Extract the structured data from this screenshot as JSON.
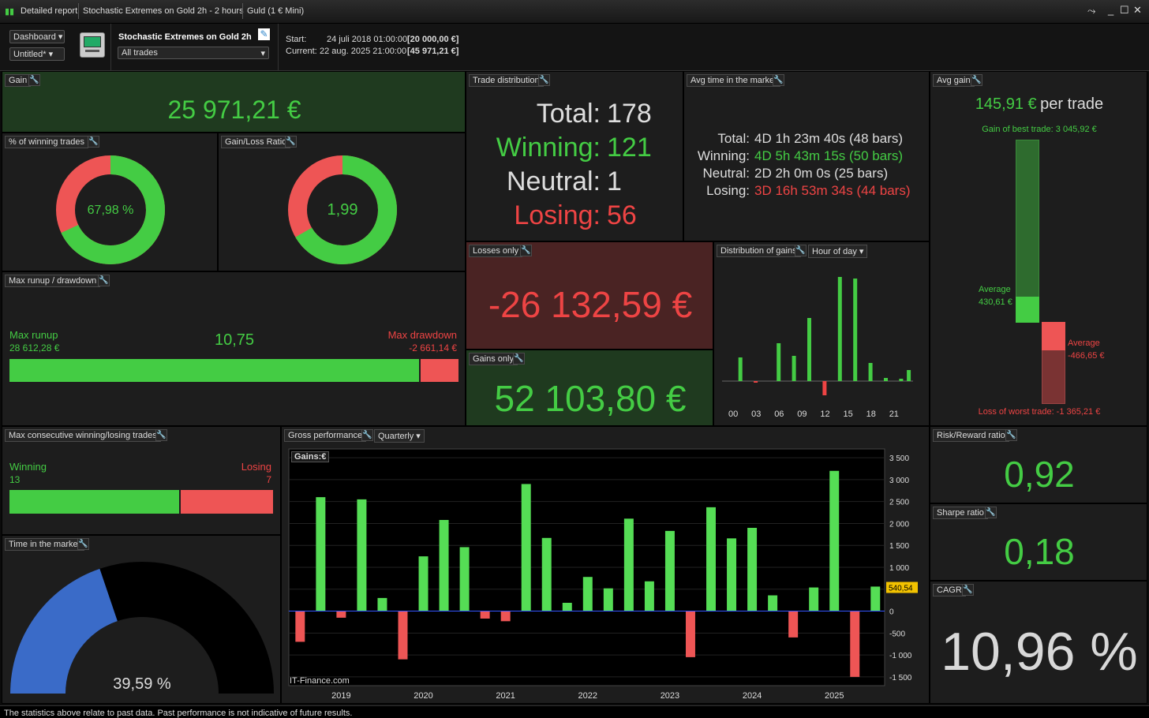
{
  "window": {
    "tab1": "Detailed report",
    "tab2": "Stochastic Extremes on Gold 2h - 2 hours",
    "tab3": "Guld (1 € Mini)"
  },
  "toolbar": {
    "dashboard": "Dashboard",
    "untitled": "Untitled*",
    "strategy_name": "Stochastic Extremes on Gold 2h",
    "trades_filter": "All trades",
    "start_label": "Start:",
    "start_date": "24 juli 2018 01:00:00",
    "start_value": "[20 000,00 €]",
    "current_label": "Current:",
    "current_date": "22 aug. 2025 21:00:00",
    "current_value": "[45 971,21 €]"
  },
  "gain": {
    "title": "Gain",
    "value": "25 971,21 €"
  },
  "winning_pct": {
    "title": "% of winning trades",
    "value": "67,98 %",
    "fraction": 0.6798
  },
  "gain_loss": {
    "title": "Gain/Loss Ratio",
    "value": "1,99",
    "fraction": 0.6656
  },
  "runup": {
    "title": "Max runup / drawdown",
    "runup_label": "Max runup",
    "runup_value": "28 612,28 €",
    "ratio": "10,75",
    "drawdown_label": "Max drawdown",
    "drawdown_value": "-2 661,14 €",
    "fraction": 0.915
  },
  "trade_dist": {
    "title": "Trade distribution",
    "total_label": "Total:",
    "total": "178",
    "winning_label": "Winning:",
    "winning": "121",
    "neutral_label": "Neutral:",
    "neutral": "1",
    "losing_label": "Losing:",
    "losing": "56"
  },
  "avg_time": {
    "title": "Avg time in the market",
    "total_label": "Total:",
    "total": "4D 1h 23m 40s (48 bars)",
    "winning_label": "Winning:",
    "winning": "4D 5h 43m 15s (50 bars)",
    "neutral_label": "Neutral:",
    "neutral": "2D 2h 0m 0s (25 bars)",
    "losing_label": "Losing:",
    "losing": "3D 16h 53m 34s (44 bars)"
  },
  "avg_gain": {
    "title": "Avg gain",
    "value": "145,91 €",
    "suffix": "per trade",
    "best_label": "Gain of best trade: 3 045,92 €",
    "avg_win_label": "Average",
    "avg_win": "430,61 €",
    "avg_loss_label": "Average",
    "avg_loss": "-466,65 €",
    "worst_label": "Loss of worst trade: -1 365,21 €"
  },
  "losses_only": {
    "title": "Losses only",
    "value": "-26 132,59 €"
  },
  "gains_only": {
    "title": "Gains only",
    "value": "52 103,80 €"
  },
  "dist_gains": {
    "title": "Distribution of gains",
    "mode": "Hour of day"
  },
  "consec": {
    "title": "Max consecutive winning/losing trades",
    "win_label": "Winning",
    "win": "13",
    "lose_label": "Losing",
    "lose": "7",
    "fraction": 0.65
  },
  "time_market": {
    "title": "Time in the market",
    "value": "39,59 %",
    "fraction": 0.3959
  },
  "gross": {
    "title": "Gross performance",
    "period": "Quarterly",
    "chart_label": "Gains:€",
    "watermark": "IT-Finance.com",
    "marker": "540,54"
  },
  "risk_reward": {
    "title": "Risk/Reward ratio",
    "value": "0,92"
  },
  "sharpe": {
    "title": "Sharpe ratio",
    "value": "0,18"
  },
  "cagr": {
    "title": "CAGR",
    "value": "10,96 %"
  },
  "footer": "The statistics above relate to past data. Past performance is not indicative of future results.",
  "chart_data": [
    {
      "type": "bar",
      "title": "Distribution of gains",
      "categories": [
        "00",
        "01",
        "02",
        "03",
        "04",
        "05",
        "06",
        "07",
        "08",
        "09",
        "10",
        "11",
        "12",
        "13",
        "14",
        "15",
        "16",
        "17",
        "18",
        "19",
        "20",
        "21",
        "22",
        "23"
      ],
      "tick_labels": [
        "00",
        "03",
        "06",
        "09",
        "12",
        "15",
        "18",
        "21"
      ],
      "values": [
        0,
        30,
        0,
        -2,
        0,
        0,
        48,
        0,
        32,
        0,
        80,
        0,
        -18,
        0,
        132,
        0,
        130,
        0,
        23,
        0,
        4,
        0,
        3,
        14
      ]
    },
    {
      "type": "bar",
      "title": "Gross performance",
      "x_labels": [
        "2019",
        "2020",
        "2021",
        "2022",
        "2023",
        "2024",
        "2025"
      ],
      "ylim": [
        -1700,
        3700
      ],
      "yticks": [
        "3 500",
        "3 000",
        "2 500",
        "2 000",
        "1 500",
        "1 000",
        "500",
        "0",
        "-500",
        "-1 000",
        "-1 500"
      ],
      "ytick_values": [
        3500,
        3000,
        2500,
        2000,
        1500,
        1000,
        500,
        0,
        -500,
        -1000,
        -1500
      ],
      "values": [
        -700,
        2600,
        -150,
        2550,
        300,
        -1100,
        1250,
        2080,
        1460,
        -170,
        -230,
        2900,
        1670,
        190,
        780,
        520,
        2110,
        680,
        1830,
        -1050,
        2370,
        1660,
        1900,
        360,
        -600,
        540,
        3200,
        -1500,
        560
      ]
    }
  ]
}
